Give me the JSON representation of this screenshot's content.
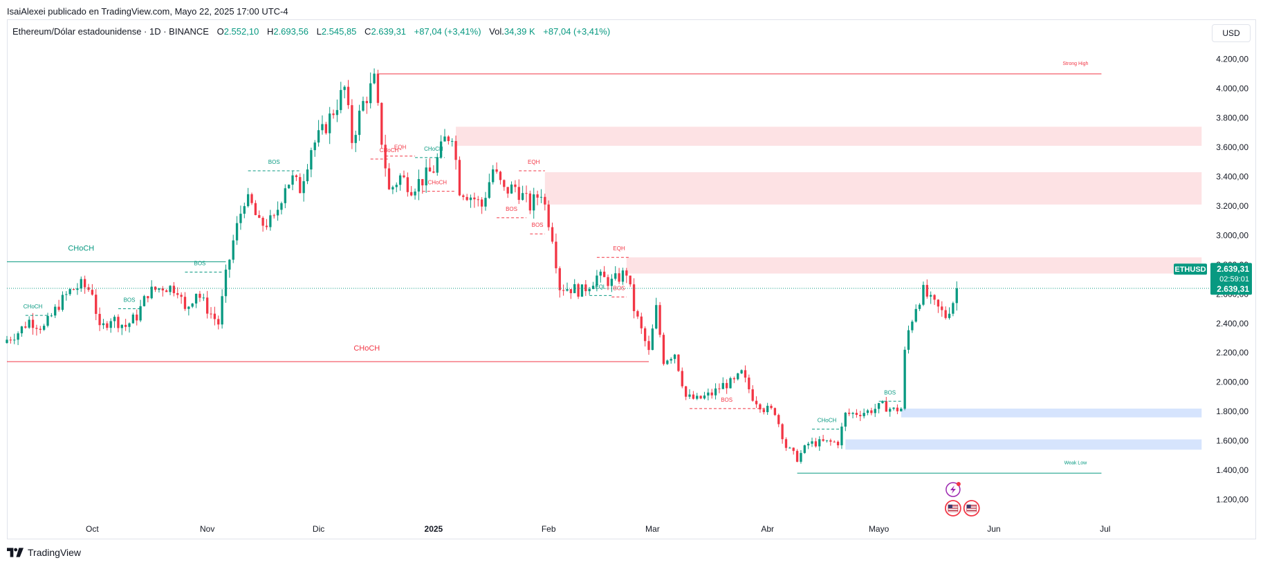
{
  "publisher_line": "IsaiAlexei publicado en TradingView.com, Mayo 22, 2025 17:00 UTC-4",
  "legend": {
    "symbol": "Ethereum/Dólar estadounidense · 1D · BINANCE",
    "open_label": "O",
    "open": "2.552,10",
    "high_label": "H",
    "high": "2.693,56",
    "low_label": "L",
    "low": "2.545,85",
    "close_label": "C",
    "close": "2.639,31",
    "change": "+87,04 (+3,41%)",
    "vol_label": "Vol.",
    "vol": "34,39 K",
    "vol_change": "+87,04 (+3,41%)"
  },
  "currency_button": "USD",
  "footer": {
    "brand": "TradingView",
    "logo_icon": "tradingview-logo-icon"
  },
  "colors": {
    "up": "#089981",
    "down": "#f23645",
    "supply_zone": "#fde2e4",
    "demand_zone": "#d6e4fd",
    "price_tag": "#089981",
    "grid_text": "#131722"
  },
  "chart_data": {
    "type": "candlestick",
    "symbol_tag": "ETHUSD",
    "last_price": "2.639,31",
    "countdown": "02:59:01",
    "y_ticks": [
      "1.200,00",
      "1.400,00",
      "1.600,00",
      "1.800,00",
      "2.000,00",
      "2.200,00",
      "2.400,00",
      "2.600,00",
      "2.800,00",
      "3.000,00",
      "3.200,00",
      "3.400,00",
      "3.600,00",
      "3.800,00",
      "4.000,00",
      "4.200,00"
    ],
    "y_tick_values": [
      1200,
      1400,
      1600,
      1800,
      2000,
      2200,
      2400,
      2600,
      2800,
      3000,
      3200,
      3400,
      3600,
      3800,
      4000,
      4200
    ],
    "ylim": [
      1080,
      4330
    ],
    "x_start": "2024-09-08",
    "x_end": "2025-07-29",
    "x_ticks": [
      {
        "label": "Oct",
        "date": "2024-10-01"
      },
      {
        "label": "Nov",
        "date": "2024-11-01"
      },
      {
        "label": "Dic",
        "date": "2024-12-01"
      },
      {
        "label": "2025",
        "date": "2025-01-01"
      },
      {
        "label": "Feb",
        "date": "2025-02-01"
      },
      {
        "label": "Mar",
        "date": "2025-03-01"
      },
      {
        "label": "Abr",
        "date": "2025-04-01"
      },
      {
        "label": "Mayo",
        "date": "2025-05-01"
      },
      {
        "label": "Jun",
        "date": "2025-06-01"
      },
      {
        "label": "Jul",
        "date": "2025-07-01"
      }
    ],
    "series": [
      {
        "name": "ETHUSD",
        "close_path": [
          {
            "date": "2024-09-08",
            "close": 2290
          },
          {
            "date": "2024-09-11",
            "close": 2340
          },
          {
            "date": "2024-09-14",
            "close": 2420
          },
          {
            "date": "2024-09-18",
            "close": 2370
          },
          {
            "date": "2024-09-22",
            "close": 2530
          },
          {
            "date": "2024-09-25",
            "close": 2620
          },
          {
            "date": "2024-09-28",
            "close": 2660
          },
          {
            "date": "2024-10-01",
            "close": 2620
          },
          {
            "date": "2024-10-03",
            "close": 2350
          },
          {
            "date": "2024-10-06",
            "close": 2440
          },
          {
            "date": "2024-10-10",
            "close": 2380
          },
          {
            "date": "2024-10-13",
            "close": 2450
          },
          {
            "date": "2024-10-16",
            "close": 2610
          },
          {
            "date": "2024-10-20",
            "close": 2650
          },
          {
            "date": "2024-10-24",
            "close": 2640
          },
          {
            "date": "2024-10-26",
            "close": 2480
          },
          {
            "date": "2024-10-29",
            "close": 2620
          },
          {
            "date": "2024-11-01",
            "close": 2500
          },
          {
            "date": "2024-11-04",
            "close": 2400
          },
          {
            "date": "2024-11-06",
            "close": 2720
          },
          {
            "date": "2024-11-08",
            "close": 2960
          },
          {
            "date": "2024-11-11",
            "close": 3250
          },
          {
            "date": "2024-11-13",
            "close": 3200
          },
          {
            "date": "2024-11-15",
            "close": 3070
          },
          {
            "date": "2024-11-19",
            "close": 3100
          },
          {
            "date": "2024-11-22",
            "close": 3350
          },
          {
            "date": "2024-11-24",
            "close": 3380
          },
          {
            "date": "2024-11-26",
            "close": 3320
          },
          {
            "date": "2024-11-29",
            "close": 3600
          },
          {
            "date": "2024-12-02",
            "close": 3700
          },
          {
            "date": "2024-12-05",
            "close": 3850
          },
          {
            "date": "2024-12-08",
            "close": 4000
          },
          {
            "date": "2024-12-10",
            "close": 3650
          },
          {
            "date": "2024-12-13",
            "close": 3900
          },
          {
            "date": "2024-12-16",
            "close": 4050
          },
          {
            "date": "2024-12-18",
            "close": 3650
          },
          {
            "date": "2024-12-20",
            "close": 3300
          },
          {
            "date": "2024-12-23",
            "close": 3400
          },
          {
            "date": "2024-12-26",
            "close": 3330
          },
          {
            "date": "2024-12-29",
            "close": 3380
          },
          {
            "date": "2025-01-01",
            "close": 3450
          },
          {
            "date": "2025-01-04",
            "close": 3650
          },
          {
            "date": "2025-01-06",
            "close": 3700
          },
          {
            "date": "2025-01-08",
            "close": 3320
          },
          {
            "date": "2025-01-12",
            "close": 3250
          },
          {
            "date": "2025-01-14",
            "close": 3200
          },
          {
            "date": "2025-01-17",
            "close": 3450
          },
          {
            "date": "2025-01-20",
            "close": 3300
          },
          {
            "date": "2025-01-23",
            "close": 3330
          },
          {
            "date": "2025-01-27",
            "close": 3200
          },
          {
            "date": "2025-01-30",
            "close": 3300
          },
          {
            "date": "2025-02-02",
            "close": 3000
          },
          {
            "date": "2025-02-04",
            "close": 2650
          },
          {
            "date": "2025-02-07",
            "close": 2640
          },
          {
            "date": "2025-02-10",
            "close": 2620
          },
          {
            "date": "2025-02-14",
            "close": 2720
          },
          {
            "date": "2025-02-18",
            "close": 2680
          },
          {
            "date": "2025-02-22",
            "close": 2750
          },
          {
            "date": "2025-02-24",
            "close": 2500
          },
          {
            "date": "2025-02-26",
            "close": 2350
          },
          {
            "date": "2025-02-28",
            "close": 2200
          },
          {
            "date": "2025-03-02",
            "close": 2500
          },
          {
            "date": "2025-03-04",
            "close": 2150
          },
          {
            "date": "2025-03-07",
            "close": 2200
          },
          {
            "date": "2025-03-10",
            "close": 1900
          },
          {
            "date": "2025-03-13",
            "close": 1880
          },
          {
            "date": "2025-03-17",
            "close": 1920
          },
          {
            "date": "2025-03-20",
            "close": 1980
          },
          {
            "date": "2025-03-23",
            "close": 2000
          },
          {
            "date": "2025-03-25",
            "close": 2060
          },
          {
            "date": "2025-03-28",
            "close": 1900
          },
          {
            "date": "2025-03-31",
            "close": 1820
          },
          {
            "date": "2025-04-03",
            "close": 1800
          },
          {
            "date": "2025-04-06",
            "close": 1560
          },
          {
            "date": "2025-04-09",
            "close": 1480
          },
          {
            "date": "2025-04-12",
            "close": 1580
          },
          {
            "date": "2025-04-16",
            "close": 1590
          },
          {
            "date": "2025-04-20",
            "close": 1590
          },
          {
            "date": "2025-04-22",
            "close": 1780
          },
          {
            "date": "2025-04-25",
            "close": 1790
          },
          {
            "date": "2025-04-28",
            "close": 1800
          },
          {
            "date": "2025-05-02",
            "close": 1840
          },
          {
            "date": "2025-05-05",
            "close": 1810
          },
          {
            "date": "2025-05-07",
            "close": 1820
          },
          {
            "date": "2025-05-08",
            "close": 2200
          },
          {
            "date": "2025-05-09",
            "close": 2350
          },
          {
            "date": "2025-05-11",
            "close": 2520
          },
          {
            "date": "2025-05-13",
            "close": 2620
          },
          {
            "date": "2025-05-15",
            "close": 2550
          },
          {
            "date": "2025-05-17",
            "close": 2500
          },
          {
            "date": "2025-05-19",
            "close": 2450
          },
          {
            "date": "2025-05-21",
            "close": 2552
          },
          {
            "date": "2025-05-22",
            "close": 2639
          }
        ]
      }
    ],
    "zones": [
      {
        "kind": "supply",
        "from": "2025-01-07",
        "to": "2025-07-27",
        "low": 3610,
        "high": 3740
      },
      {
        "kind": "supply",
        "from": "2025-01-31",
        "to": "2025-07-27",
        "low": 3210,
        "high": 3430
      },
      {
        "kind": "supply",
        "from": "2025-02-22",
        "to": "2025-07-27",
        "low": 2740,
        "high": 2850
      },
      {
        "kind": "demand",
        "from": "2025-05-07",
        "to": "2025-07-27",
        "low": 1760,
        "high": 1820
      },
      {
        "kind": "demand",
        "from": "2025-04-22",
        "to": "2025-07-27",
        "low": 1540,
        "high": 1610
      }
    ],
    "levels": [
      {
        "from": "2024-12-17",
        "to": "2025-06-30",
        "price": 4100,
        "color": "#f23645",
        "text": "Strong High",
        "text_date": "2025-06-23"
      },
      {
        "from": "2025-04-09",
        "to": "2025-06-30",
        "price": 1380,
        "color": "#089981",
        "text": "Weak Low",
        "text_date": "2025-06-23"
      },
      {
        "from": "2024-09-08",
        "to": "2024-11-06",
        "price": 2820,
        "color": "#089981",
        "text": "CHoCH",
        "text_date": "2024-09-28"
      },
      {
        "from": "2024-09-08",
        "to": "2025-02-28",
        "price": 2140,
        "color": "#f23645",
        "text": "CHoCH",
        "text_date": "2024-12-14"
      }
    ],
    "structure_labels": [
      {
        "text": "CHoCH",
        "date": "2024-09-15",
        "price": 2455,
        "color": "#089981",
        "line_from": "2024-09-13",
        "line_to": "2024-09-19"
      },
      {
        "text": "BOS",
        "date": "2024-10-11",
        "price": 2500,
        "color": "#089981",
        "line_from": "2024-10-08",
        "line_to": "2024-10-14"
      },
      {
        "text": "BOS",
        "date": "2024-10-30",
        "price": 2750,
        "color": "#089981",
        "line_from": "2024-10-26",
        "line_to": "2024-11-05"
      },
      {
        "text": "BOS",
        "date": "2024-11-19",
        "price": 3440,
        "color": "#089981",
        "line_from": "2024-11-12",
        "line_to": "2024-11-26"
      },
      {
        "text": "EQH",
        "date": "2024-12-23",
        "price": 3540,
        "color": "#f23645",
        "line_from": "2024-12-19",
        "line_to": "2024-12-27"
      },
      {
        "text": "CHoCH",
        "date": "2024-12-20",
        "price": 3520,
        "color": "#f23645",
        "line_from": "2024-12-15",
        "line_to": "2024-12-20"
      },
      {
        "text": "CHoCH",
        "date": "2025-01-01",
        "price": 3530,
        "color": "#089981",
        "line_from": "2024-12-27",
        "line_to": "2025-01-04"
      },
      {
        "text": "CHoCH",
        "date": "2025-01-02",
        "price": 3300,
        "color": "#f23645",
        "line_from": "2024-12-29",
        "line_to": "2025-01-07"
      },
      {
        "text": "EQH",
        "date": "2025-01-28",
        "price": 3440,
        "color": "#f23645",
        "line_from": "2025-01-24",
        "line_to": "2025-01-31"
      },
      {
        "text": "BOS",
        "date": "2025-01-22",
        "price": 3120,
        "color": "#f23645",
        "line_from": "2025-01-18",
        "line_to": "2025-01-26"
      },
      {
        "text": "BOS",
        "date": "2025-01-29",
        "price": 3010,
        "color": "#f23645",
        "line_from": "2025-01-27",
        "line_to": "2025-01-31"
      },
      {
        "text": "EQH",
        "date": "2025-02-20",
        "price": 2850,
        "color": "#f23645",
        "line_from": "2025-02-14",
        "line_to": "2025-02-23"
      },
      {
        "text": "EQL",
        "date": "2025-02-15",
        "price": 2590,
        "color": "#089981",
        "line_from": "2025-02-12",
        "line_to": "2025-02-18"
      },
      {
        "text": "BOS",
        "date": "2025-02-20",
        "price": 2580,
        "color": "#f23645",
        "line_from": "2025-02-18",
        "line_to": "2025-02-22"
      },
      {
        "text": "BOS",
        "date": "2025-03-21",
        "price": 1820,
        "color": "#f23645",
        "line_from": "2025-03-11",
        "line_to": "2025-04-01"
      },
      {
        "text": "CHoCH",
        "date": "2025-04-17",
        "price": 1680,
        "color": "#089981",
        "line_from": "2025-04-13",
        "line_to": "2025-04-21"
      },
      {
        "text": "BOS",
        "date": "2025-05-04",
        "price": 1870,
        "color": "#089981",
        "line_from": "2025-05-01",
        "line_to": "2025-05-07"
      }
    ],
    "event_icons": [
      {
        "name": "lightning-icon",
        "date": "2025-05-21"
      },
      {
        "name": "us-flag-icon",
        "date": "2025-05-21"
      },
      {
        "name": "us-flag-icon",
        "date": "2025-05-26"
      }
    ]
  }
}
